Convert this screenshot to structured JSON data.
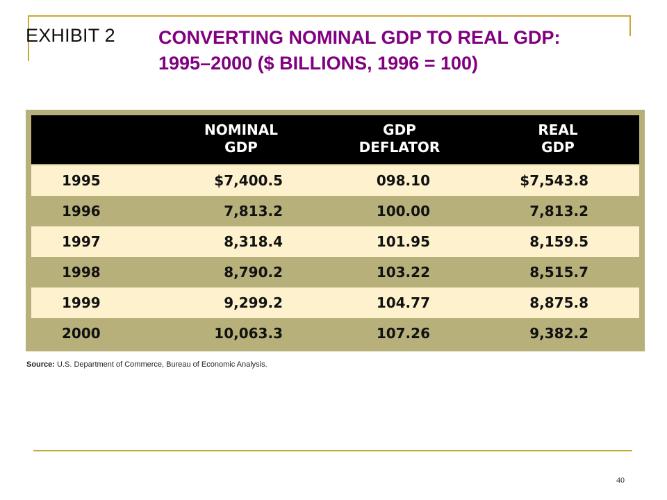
{
  "slide": {
    "exhibit_label": "EXHIBIT 2",
    "title_line1": "CONVERTING NOMINAL GDP TO REAL GDP:",
    "title_line2": "1995–2000 ($ BILLIONS, 1996 = 100)",
    "page_number": "40"
  },
  "table": {
    "headers": {
      "nominal_line1": "NOMINAL",
      "nominal_line2": "GDP",
      "deflator_line1": "GDP",
      "deflator_line2": "DEFLATOR",
      "real_line1": "REAL",
      "real_line2": "GDP"
    },
    "rows": [
      {
        "year": "1995",
        "nominal": "$7,400.5",
        "deflator": "098.10",
        "real": "$7,543.8"
      },
      {
        "year": "1996",
        "nominal": "7,813.2",
        "deflator": "100.00",
        "real": "7,813.2"
      },
      {
        "year": "1997",
        "nominal": "8,318.4",
        "deflator": "101.95",
        "real": "8,159.5"
      },
      {
        "year": "1998",
        "nominal": "8,790.2",
        "deflator": "103.22",
        "real": "8,515.7"
      },
      {
        "year": "1999",
        "nominal": "9,299.2",
        "deflator": "104.77",
        "real": "8,875.8"
      },
      {
        "year": "2000",
        "nominal": "10,063.3",
        "deflator": "107.26",
        "real": "9,382.2"
      }
    ]
  },
  "source": {
    "label": "Source:",
    "text": "U.S. Department of Commerce, Bureau of Economic Analysis."
  },
  "colors": {
    "title": "#800080",
    "frame": "#c9a832",
    "row_light": "#fdf2cd",
    "row_dark": "#b7b07a",
    "header_bg": "#000000"
  }
}
